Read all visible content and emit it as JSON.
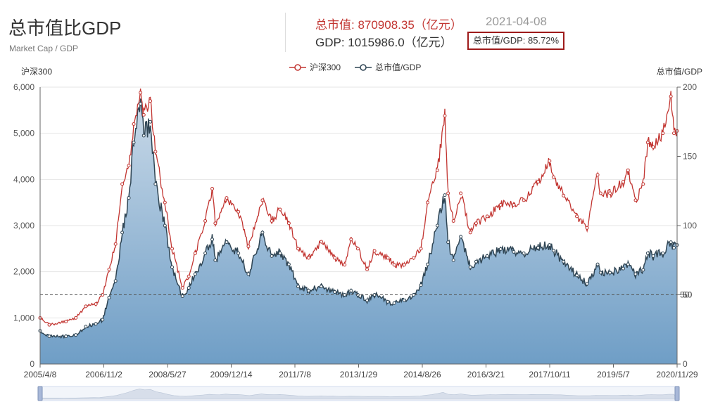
{
  "header": {
    "title": "总市值比GDP",
    "subtitle": "Market Cap / GDP",
    "market_cap_text": "总市值: 870908.35（亿元）",
    "date_text": "2021-04-08",
    "gdp_text": "GDP: 1015986.0（亿元）",
    "ratio_text": "总市值/GDP: 85.72%"
  },
  "colors": {
    "hs300": "#c23531",
    "ratio_line": "#2f4554",
    "area_top": "#c9d9e8",
    "area_bottom": "#6f9ec6",
    "highlight_border": "#9e1b1b"
  },
  "chart_data": {
    "type": "line",
    "legend": [
      "沪深300",
      "总市值/GDP"
    ],
    "legend_position": "top-center",
    "y_left_label": "沪深300",
    "y_right_label": "总市值/GDP",
    "y_left_range": [
      0,
      6000
    ],
    "y_left_ticks": [
      "0",
      "1,000",
      "2,000",
      "3,000",
      "4,000",
      "5,000",
      "6,000"
    ],
    "y_right_range": [
      0,
      200
    ],
    "y_right_ticks": [
      "0",
      "50",
      "100",
      "150",
      "200"
    ],
    "reference_line": {
      "axis": "right",
      "value": 50,
      "labels": [
        "50",
        "50"
      ]
    },
    "x_ticks": [
      "2005/4/8",
      "2006/11/2",
      "2008/5/27",
      "2009/12/14",
      "2011/7/8",
      "2013/1/29",
      "2014/8/26",
      "2016/3/21",
      "2017/10/11",
      "2019/5/7",
      "2020/11/29"
    ],
    "x_range": [
      "2005/4/8",
      "2021/4/8"
    ],
    "grid": true,
    "series": [
      {
        "name": "沪深300",
        "axis": "left",
        "points": [
          [
            "2005/4/8",
            1000
          ],
          [
            "2005/7/1",
            850
          ],
          [
            "2005/12/1",
            920
          ],
          [
            "2006/3/1",
            1000
          ],
          [
            "2006/6/1",
            1250
          ],
          [
            "2006/9/1",
            1300
          ],
          [
            "2006/11/2",
            1500
          ],
          [
            "2007/1/1",
            2050
          ],
          [
            "2007/3/1",
            2600
          ],
          [
            "2007/5/1",
            3900
          ],
          [
            "2007/7/1",
            4300
          ],
          [
            "2007/8/15",
            5200
          ],
          [
            "2007/10/16",
            5880
          ],
          [
            "2007/11/15",
            5400
          ],
          [
            "2008/1/14",
            5700
          ],
          [
            "2008/3/1",
            4600
          ],
          [
            "2008/5/27",
            3500
          ],
          [
            "2008/8/1",
            2500
          ],
          [
            "2008/11/4",
            1650
          ],
          [
            "2009/1/1",
            1900
          ],
          [
            "2009/3/1",
            2400
          ],
          [
            "2009/6/1",
            3100
          ],
          [
            "2009/8/4",
            3800
          ],
          [
            "2009/9/1",
            3050
          ],
          [
            "2009/12/14",
            3600
          ],
          [
            "2010/4/1",
            3300
          ],
          [
            "2010/7/2",
            2550
          ],
          [
            "2010/11/8",
            3550
          ],
          [
            "2011/2/1",
            3100
          ],
          [
            "2011/4/18",
            3350
          ],
          [
            "2011/7/8",
            3050
          ],
          [
            "2011/10/1",
            2500
          ],
          [
            "2012/1/5",
            2300
          ],
          [
            "2012/5/1",
            2650
          ],
          [
            "2012/9/1",
            2300
          ],
          [
            "2012/12/1",
            2150
          ],
          [
            "2013/1/29",
            2700
          ],
          [
            "2013/4/1",
            2500
          ],
          [
            "2013/6/25",
            2050
          ],
          [
            "2013/9/1",
            2450
          ],
          [
            "2014/1/1",
            2300
          ],
          [
            "2014/3/1",
            2150
          ],
          [
            "2014/6/1",
            2150
          ],
          [
            "2014/8/26",
            2300
          ],
          [
            "2014/11/1",
            2500
          ],
          [
            "2015/1/1",
            3500
          ],
          [
            "2015/4/1",
            4200
          ],
          [
            "2015/6/8",
            5380
          ],
          [
            "2015/7/8",
            3700
          ],
          [
            "2015/8/26",
            3100
          ],
          [
            "2015/11/1",
            3700
          ],
          [
            "2016/1/28",
            2850
          ],
          [
            "2016/3/21",
            3050
          ],
          [
            "2016/7/1",
            3200
          ],
          [
            "2016/11/1",
            3450
          ],
          [
            "2017/3/1",
            3450
          ],
          [
            "2017/6/1",
            3550
          ],
          [
            "2017/10/11",
            3950
          ],
          [
            "2018/1/24",
            4400
          ],
          [
            "2018/3/1",
            4050
          ],
          [
            "2018/6/1",
            3650
          ],
          [
            "2018/10/1",
            3200
          ],
          [
            "2019/1/3",
            2950
          ],
          [
            "2019/4/10",
            4100
          ],
          [
            "2019/5/7",
            3700
          ],
          [
            "2019/8/1",
            3700
          ],
          [
            "2019/12/1",
            3950
          ],
          [
            "2020/1/14",
            4200
          ],
          [
            "2020/3/23",
            3550
          ],
          [
            "2020/6/1",
            3900
          ],
          [
            "2020/7/13",
            4800
          ],
          [
            "2020/9/1",
            4700
          ],
          [
            "2020/11/29",
            5000
          ],
          [
            "2021/2/10",
            5800
          ],
          [
            "2021/3/10",
            5000
          ],
          [
            "2021/4/8",
            5050
          ]
        ]
      },
      {
        "name": "总市值/GDP",
        "axis": "right",
        "points": [
          [
            "2005/4/8",
            24
          ],
          [
            "2005/7/1",
            20
          ],
          [
            "2005/12/1",
            20
          ],
          [
            "2006/3/1",
            21
          ],
          [
            "2006/6/1",
            27
          ],
          [
            "2006/9/1",
            29
          ],
          [
            "2006/11/2",
            32
          ],
          [
            "2007/1/1",
            48
          ],
          [
            "2007/3/1",
            60
          ],
          [
            "2007/5/1",
            95
          ],
          [
            "2007/7/1",
            120
          ],
          [
            "2007/8/15",
            160
          ],
          [
            "2007/10/16",
            188
          ],
          [
            "2007/11/15",
            165
          ],
          [
            "2008/1/14",
            175
          ],
          [
            "2008/3/1",
            130
          ],
          [
            "2008/5/27",
            100
          ],
          [
            "2008/8/1",
            70
          ],
          [
            "2008/11/4",
            49
          ],
          [
            "2009/1/1",
            55
          ],
          [
            "2009/3/1",
            65
          ],
          [
            "2009/6/1",
            80
          ],
          [
            "2009/8/4",
            90
          ],
          [
            "2009/9/1",
            75
          ],
          [
            "2009/12/14",
            88
          ],
          [
            "2010/4/1",
            80
          ],
          [
            "2010/7/2",
            65
          ],
          [
            "2010/11/8",
            95
          ],
          [
            "2011/2/1",
            78
          ],
          [
            "2011/4/18",
            80
          ],
          [
            "2011/7/8",
            72
          ],
          [
            "2011/10/1",
            56
          ],
          [
            "2012/1/5",
            53
          ],
          [
            "2012/5/1",
            56
          ],
          [
            "2012/9/1",
            52
          ],
          [
            "2012/12/1",
            50
          ],
          [
            "2013/1/29",
            53
          ],
          [
            "2013/4/1",
            50
          ],
          [
            "2013/6/25",
            46
          ],
          [
            "2013/9/1",
            50
          ],
          [
            "2014/1/1",
            45
          ],
          [
            "2014/3/1",
            44
          ],
          [
            "2014/6/1",
            46
          ],
          [
            "2014/8/26",
            50
          ],
          [
            "2014/11/1",
            57
          ],
          [
            "2015/1/1",
            72
          ],
          [
            "2015/4/1",
            100
          ],
          [
            "2015/6/8",
            122
          ],
          [
            "2015/7/8",
            88
          ],
          [
            "2015/8/26",
            75
          ],
          [
            "2015/11/1",
            92
          ],
          [
            "2016/1/28",
            70
          ],
          [
            "2016/3/21",
            74
          ],
          [
            "2016/7/1",
            78
          ],
          [
            "2016/11/1",
            83
          ],
          [
            "2017/3/1",
            81
          ],
          [
            "2017/6/1",
            80
          ],
          [
            "2017/10/11",
            84
          ],
          [
            "2018/1/24",
            86
          ],
          [
            "2018/3/1",
            82
          ],
          [
            "2018/6/1",
            74
          ],
          [
            "2018/10/1",
            64
          ],
          [
            "2019/1/3",
            58
          ],
          [
            "2019/4/10",
            72
          ],
          [
            "2019/5/7",
            66
          ],
          [
            "2019/8/1",
            66
          ],
          [
            "2019/12/1",
            69
          ],
          [
            "2020/1/14",
            72
          ],
          [
            "2020/3/23",
            65
          ],
          [
            "2020/6/1",
            68
          ],
          [
            "2020/7/13",
            80
          ],
          [
            "2020/9/1",
            78
          ],
          [
            "2020/11/29",
            80
          ],
          [
            "2021/2/10",
            88
          ],
          [
            "2021/3/10",
            84
          ],
          [
            "2021/4/8",
            86
          ]
        ]
      }
    ]
  }
}
